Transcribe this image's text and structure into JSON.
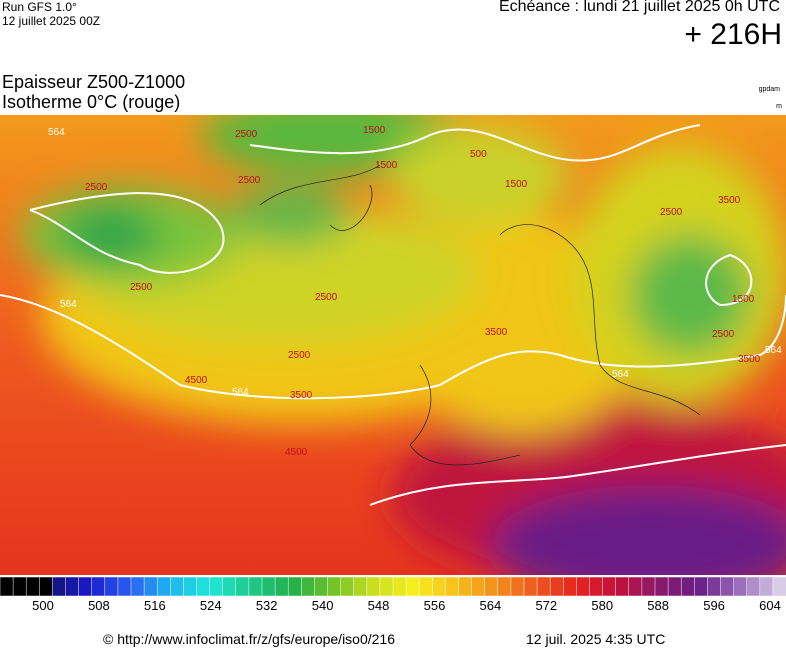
{
  "header": {
    "run": "Run GFS 1.0°",
    "run_date": "12 juillet 2025 00Z",
    "valid": "Echéance : lundi 21 juillet 2025 0h UTC",
    "lead": "+ 216H",
    "title_line1": "Epaisseur Z500-Z1000",
    "title_line2": "Isotherme 0°C (rouge)",
    "unit1": "gpdam",
    "unit2": "m"
  },
  "map": {
    "labels": [
      "564",
      "1500",
      "2500",
      "2500",
      "2500",
      "1500",
      "500",
      "1500",
      "2500",
      "3500",
      "564",
      "2500",
      "2500",
      "2500",
      "4500",
      "564",
      "3500",
      "3500",
      "564",
      "2500",
      "3500",
      "564",
      "4500",
      "1500"
    ]
  },
  "colorbar": {
    "ticks": [
      500,
      508,
      516,
      524,
      532,
      540,
      548,
      556,
      564,
      572,
      580,
      588,
      596,
      604
    ],
    "range": [
      500,
      604
    ]
  },
  "footer": {
    "url": "© http://www.infoclimat.fr/z/gfs/europe/iso0/216",
    "time": "12 juil. 2025  4:35 UTC"
  }
}
